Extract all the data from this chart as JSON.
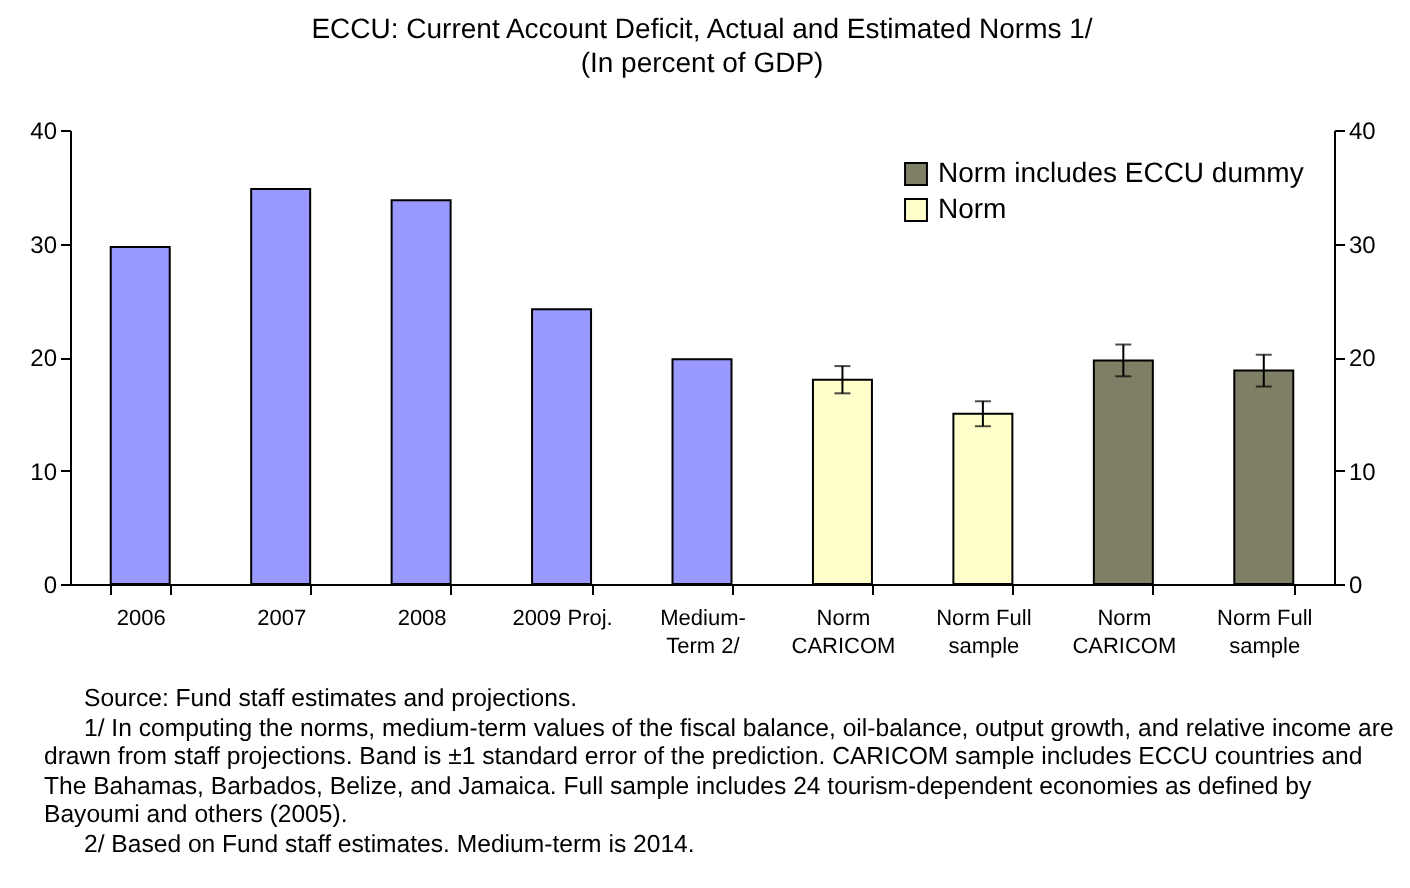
{
  "chart_data": {
    "type": "bar",
    "title": "ECCU: Current Account Deficit, Actual and Estimated Norms 1/",
    "subtitle": "(In percent of GDP)",
    "categories": [
      "2006",
      "2007",
      "2008",
      "2009 Proj.",
      "Medium-Term 2/",
      "Norm CARICOM",
      "Norm Full sample",
      "Norm CARICOM",
      "Norm Full sample"
    ],
    "series": [
      {
        "color": "#9999ff",
        "values": [
          29.7,
          34.8,
          33.8,
          24.2,
          19.8,
          null,
          null,
          null,
          null
        ]
      },
      {
        "name": "Norm includes ECCU dummy",
        "color": "#7f7f66",
        "values": [
          null,
          null,
          null,
          null,
          null,
          null,
          null,
          19.7,
          18.8
        ],
        "errors": [
          null,
          null,
          null,
          null,
          null,
          null,
          null,
          1.4,
          1.4
        ]
      },
      {
        "name": "Norm",
        "color": "#ffffcc",
        "values": [
          null,
          null,
          null,
          null,
          null,
          18.0,
          15.0,
          null,
          null
        ],
        "errors": [
          null,
          null,
          null,
          null,
          null,
          1.2,
          1.1,
          null,
          null
        ]
      }
    ],
    "ylim": [
      0,
      40
    ],
    "yticks": [
      0,
      10,
      20,
      30,
      40
    ],
    "y2lim": [
      0,
      40
    ],
    "y2ticks": [
      0,
      10,
      20,
      30,
      40
    ],
    "grid": false,
    "legend": "top right",
    "annotations": [
      "Source: Fund staff estimates and projections.",
      "1/ In computing the norms, medium-term values of the fiscal balance, oil-balance, output growth, and relative income are drawn from staff projections. Band is ±1 standard error of the prediction. CARICOM sample includes ECCU countries and The Bahamas, Barbados, Belize, and Jamaica. Full sample includes 24 tourism-dependent economies as defined by Bayoumi and others (2005).",
      "2/ Based on Fund staff estimates. Medium-term is 2014."
    ]
  }
}
